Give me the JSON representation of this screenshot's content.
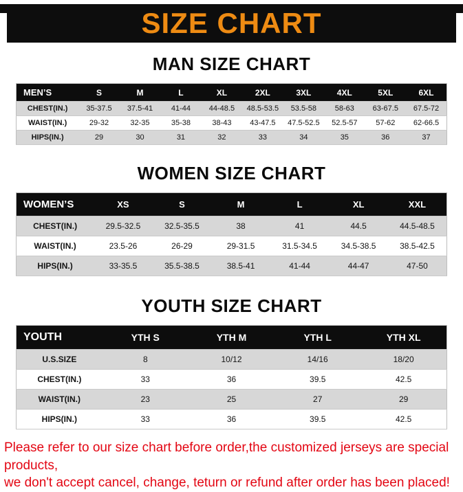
{
  "colors": {
    "accent": "#ee8b13",
    "banner_bg": "#0d0d0d",
    "footer_red": "#e30613",
    "row_gray": "#d7d7d7"
  },
  "banner": {
    "title": "SIZE CHART"
  },
  "sections": [
    {
      "heading": "MAN SIZE CHART",
      "table": {
        "header": [
          "MEN’S",
          "S",
          "M",
          "L",
          "XL",
          "2XL",
          "3XL",
          "4XL",
          "5XL",
          "6XL"
        ],
        "rows": [
          {
            "label": "CHEST(IN.)",
            "values": [
              "35-37.5",
              "37.5-41",
              "41-44",
              "44-48.5",
              "48.5-53.5",
              "53.5-58",
              "58-63",
              "63-67.5",
              "67.5-72"
            ]
          },
          {
            "label": "WAIST(IN.)",
            "values": [
              "29-32",
              "32-35",
              "35-38",
              "38-43",
              "43-47.5",
              "47.5-52.5",
              "52.5-57",
              "57-62",
              "62-66.5"
            ]
          },
          {
            "label": "HIPS(IN.)",
            "values": [
              "29",
              "30",
              "31",
              "32",
              "33",
              "34",
              "35",
              "36",
              "37"
            ]
          }
        ]
      }
    },
    {
      "heading": "WOMEN SIZE CHART",
      "table": {
        "header": [
          "WOMEN’S",
          "XS",
          "S",
          "M",
          "L",
          "XL",
          "XXL"
        ],
        "rows": [
          {
            "label": "CHEST(IN.)",
            "values": [
              "29.5-32.5",
              "32.5-35.5",
              "38",
              "41",
              "44.5",
              "44.5-48.5"
            ]
          },
          {
            "label": "WAIST(IN.)",
            "values": [
              "23.5-26",
              "26-29",
              "29-31.5",
              "31.5-34.5",
              "34.5-38.5",
              "38.5-42.5"
            ]
          },
          {
            "label": "HIPS(IN.)",
            "values": [
              "33-35.5",
              "35.5-38.5",
              "38.5-41",
              "41-44",
              "44-47",
              "47-50"
            ]
          }
        ]
      }
    },
    {
      "heading": "YOUTH SIZE CHART",
      "table": {
        "header": [
          "YOUTH",
          "YTH S",
          "YTH M",
          "YTH L",
          "YTH XL"
        ],
        "rows": [
          {
            "label": "U.S.SIZE",
            "values": [
              "8",
              "10/12",
              "14/16",
              "18/20"
            ]
          },
          {
            "label": "CHEST(IN.)",
            "values": [
              "33",
              "36",
              "39.5",
              "42.5"
            ]
          },
          {
            "label": "WAIST(IN.)",
            "values": [
              "23",
              "25",
              "27",
              "29"
            ]
          },
          {
            "label": "HIPS(IN.)",
            "values": [
              "33",
              "36",
              "39.5",
              "42.5"
            ]
          }
        ]
      }
    }
  ],
  "footer": {
    "line1": "Please refer to our size chart before order,the customized jerseys are special products,",
    "line2": "we don't accept cancel, change, teturn or refund after order has been placed!"
  }
}
